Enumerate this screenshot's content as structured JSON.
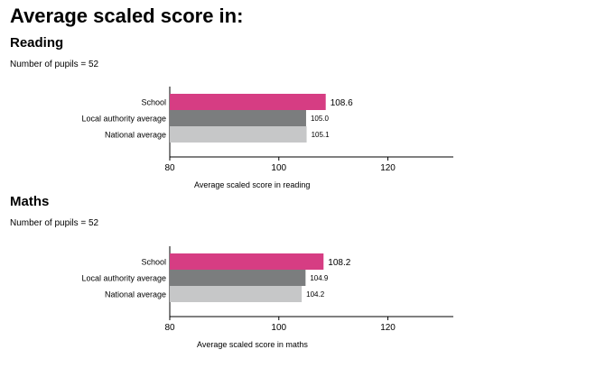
{
  "page": {
    "title": "Average scaled score in:"
  },
  "chart_data": [
    {
      "type": "bar",
      "orientation": "horizontal",
      "title": "Reading",
      "subtitle": "Number of pupils = 52",
      "categories": [
        "School",
        "Local authority average",
        "National average"
      ],
      "values": [
        108.6,
        105.0,
        105.1
      ],
      "value_labels": [
        "108.6",
        "105.0",
        "105.1"
      ],
      "colors": [
        "#d63d83",
        "#7b7d7e",
        "#c6c7c8"
      ],
      "xlabel": "Average scaled score in reading",
      "ylabel": "",
      "xlim": [
        80,
        132
      ],
      "xticks": [
        80,
        100,
        120
      ],
      "grid": false,
      "legend": "none"
    },
    {
      "type": "bar",
      "orientation": "horizontal",
      "title": "Maths",
      "subtitle": "Number of pupils = 52",
      "categories": [
        "School",
        "Local authority average",
        "National average"
      ],
      "values": [
        108.2,
        104.9,
        104.2
      ],
      "value_labels": [
        "108.2",
        "104.9",
        "104.2"
      ],
      "colors": [
        "#d63d83",
        "#7b7d7e",
        "#c6c7c8"
      ],
      "xlabel": "Average scaled score in maths",
      "ylabel": "",
      "xlim": [
        80,
        132
      ],
      "xticks": [
        80,
        100,
        120
      ],
      "grid": false,
      "legend": "none"
    }
  ]
}
